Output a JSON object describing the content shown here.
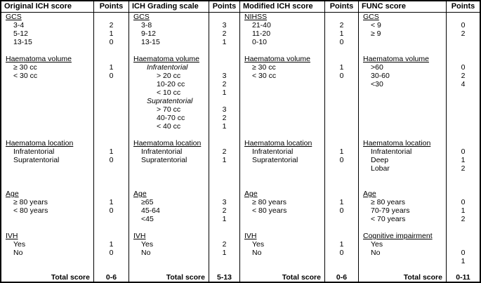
{
  "table": {
    "description": "Comparison of intracerebral haemorrhage outcome scoring systems",
    "text_color": "#000000",
    "border_color": "#000000",
    "background_color": "#ffffff",
    "groups": [
      {
        "title": "Original ICH score",
        "points_label": "Points",
        "total_label": "Total score",
        "total_points": "0-6",
        "rows": [
          {
            "t": "GCS",
            "p": "",
            "s": "section"
          },
          {
            "t": "3-4",
            "p": "2",
            "s": "item"
          },
          {
            "t": "5-12",
            "p": "1",
            "s": "item"
          },
          {
            "t": "13-15",
            "p": "0",
            "s": "item"
          },
          {
            "t": "",
            "p": "",
            "s": "blank"
          },
          {
            "t": "Haematoma volume",
            "p": "",
            "s": "section"
          },
          {
            "t": "≥ 30 cc",
            "p": "1",
            "s": "item"
          },
          {
            "t": "< 30 cc",
            "p": "0",
            "s": "item"
          },
          {
            "t": "",
            "p": "",
            "s": "blank"
          },
          {
            "t": "",
            "p": "",
            "s": "blank"
          },
          {
            "t": "",
            "p": "",
            "s": "blank"
          },
          {
            "t": "",
            "p": "",
            "s": "blank"
          },
          {
            "t": "",
            "p": "",
            "s": "blank"
          },
          {
            "t": "",
            "p": "",
            "s": "blank"
          },
          {
            "t": "",
            "p": "",
            "s": "blank"
          },
          {
            "t": "Haematoma location",
            "p": "",
            "s": "section"
          },
          {
            "t": "Infratentorial",
            "p": "1",
            "s": "item"
          },
          {
            "t": "Supratentorial",
            "p": "0",
            "s": "item"
          },
          {
            "t": "",
            "p": "",
            "s": "blank"
          },
          {
            "t": "",
            "p": "",
            "s": "blank"
          },
          {
            "t": "",
            "p": "",
            "s": "blank"
          },
          {
            "t": "Age",
            "p": "",
            "s": "section"
          },
          {
            "t": "≥ 80 years",
            "p": "1",
            "s": "item"
          },
          {
            "t": "< 80 years",
            "p": "0",
            "s": "item"
          },
          {
            "t": "",
            "p": "",
            "s": "blank"
          },
          {
            "t": "",
            "p": "",
            "s": "blank"
          },
          {
            "t": "IVH",
            "p": "",
            "s": "section"
          },
          {
            "t": "Yes",
            "p": "1",
            "s": "item"
          },
          {
            "t": "No",
            "p": "0",
            "s": "item"
          },
          {
            "t": "",
            "p": "",
            "s": "blank"
          },
          {
            "t": "",
            "p": "",
            "s": "blank"
          }
        ]
      },
      {
        "title": "ICH Grading scale",
        "points_label": "Points",
        "total_label": "Total score",
        "total_points": "5-13",
        "rows": [
          {
            "t": "GCS",
            "p": "",
            "s": "section"
          },
          {
            "t": "3-8",
            "p": "3",
            "s": "item"
          },
          {
            "t": "9-12",
            "p": "2",
            "s": "item"
          },
          {
            "t": "13-15",
            "p": "1",
            "s": "item"
          },
          {
            "t": "",
            "p": "",
            "s": "blank"
          },
          {
            "t": "Haematoma volume",
            "p": "",
            "s": "section"
          },
          {
            "t": "Infratentorial",
            "p": "",
            "s": "itemi"
          },
          {
            "t": "> 20 cc",
            "p": "3",
            "s": "sub"
          },
          {
            "t": "10-20 cc",
            "p": "2",
            "s": "sub"
          },
          {
            "t": "< 10 cc",
            "p": "1",
            "s": "sub"
          },
          {
            "t": "Supratentorial",
            "p": "",
            "s": "itemi"
          },
          {
            "t": "> 70 cc",
            "p": "3",
            "s": "sub"
          },
          {
            "t": "40-70 cc",
            "p": "2",
            "s": "sub"
          },
          {
            "t": "< 40 cc",
            "p": "1",
            "s": "sub"
          },
          {
            "t": "",
            "p": "",
            "s": "blank"
          },
          {
            "t": "Haematoma location",
            "p": "",
            "s": "section"
          },
          {
            "t": "Infratentorial",
            "p": "2",
            "s": "item"
          },
          {
            "t": "Supratentorial",
            "p": "1",
            "s": "item"
          },
          {
            "t": "",
            "p": "",
            "s": "blank"
          },
          {
            "t": "",
            "p": "",
            "s": "blank"
          },
          {
            "t": "",
            "p": "",
            "s": "blank"
          },
          {
            "t": "Age",
            "p": "",
            "s": "section"
          },
          {
            "t": "≥65",
            "p": "3",
            "s": "item"
          },
          {
            "t": "45-64",
            "p": "2",
            "s": "item"
          },
          {
            "t": "<45",
            "p": "1",
            "s": "item"
          },
          {
            "t": "",
            "p": "",
            "s": "blank"
          },
          {
            "t": "IVH",
            "p": "",
            "s": "section"
          },
          {
            "t": "Yes",
            "p": "2",
            "s": "item"
          },
          {
            "t": "No",
            "p": "1",
            "s": "item"
          },
          {
            "t": "",
            "p": "",
            "s": "blank"
          },
          {
            "t": "",
            "p": "",
            "s": "blank"
          }
        ]
      },
      {
        "title": "Modified ICH score",
        "points_label": "Points",
        "total_label": "Total score",
        "total_points": "0-6",
        "rows": [
          {
            "t": "NIHSS",
            "p": "",
            "s": "section"
          },
          {
            "t": "21-40",
            "p": "2",
            "s": "item"
          },
          {
            "t": "11-20",
            "p": "1",
            "s": "item"
          },
          {
            "t": "0-10",
            "p": "0",
            "s": "item"
          },
          {
            "t": "",
            "p": "",
            "s": "blank"
          },
          {
            "t": "Haematoma volume",
            "p": "",
            "s": "section"
          },
          {
            "t": "≥ 30 cc",
            "p": "1",
            "s": "item"
          },
          {
            "t": "< 30 cc",
            "p": "0",
            "s": "item"
          },
          {
            "t": "",
            "p": "",
            "s": "blank"
          },
          {
            "t": "",
            "p": "",
            "s": "blank"
          },
          {
            "t": "",
            "p": "",
            "s": "blank"
          },
          {
            "t": "",
            "p": "",
            "s": "blank"
          },
          {
            "t": "",
            "p": "",
            "s": "blank"
          },
          {
            "t": "",
            "p": "",
            "s": "blank"
          },
          {
            "t": "",
            "p": "",
            "s": "blank"
          },
          {
            "t": "Haematoma location",
            "p": "",
            "s": "section"
          },
          {
            "t": "Infratentorial",
            "p": "1",
            "s": "item"
          },
          {
            "t": "Supratentorial",
            "p": "0",
            "s": "item"
          },
          {
            "t": "",
            "p": "",
            "s": "blank"
          },
          {
            "t": "",
            "p": "",
            "s": "blank"
          },
          {
            "t": "",
            "p": "",
            "s": "blank"
          },
          {
            "t": "Age",
            "p": "",
            "s": "section"
          },
          {
            "t": "≥ 80 years",
            "p": "1",
            "s": "item"
          },
          {
            "t": "< 80 years",
            "p": "0",
            "s": "item"
          },
          {
            "t": "",
            "p": "",
            "s": "blank"
          },
          {
            "t": "",
            "p": "",
            "s": "blank"
          },
          {
            "t": "IVH",
            "p": "",
            "s": "section"
          },
          {
            "t": "Yes",
            "p": "1",
            "s": "item"
          },
          {
            "t": "No",
            "p": "0",
            "s": "item"
          },
          {
            "t": "",
            "p": "",
            "s": "blank"
          },
          {
            "t": "",
            "p": "",
            "s": "blank"
          }
        ]
      },
      {
        "title": "FUNC score",
        "points_label": "Points",
        "total_label": "Total score",
        "total_points": "0-11",
        "rows": [
          {
            "t": "GCS",
            "p": "",
            "s": "section"
          },
          {
            "t": "< 9",
            "p": "0",
            "s": "item"
          },
          {
            "t": "≥ 9",
            "p": "2",
            "s": "item"
          },
          {
            "t": "",
            "p": "",
            "s": "blank"
          },
          {
            "t": "",
            "p": "",
            "s": "blank"
          },
          {
            "t": "Haematoma volume",
            "p": "",
            "s": "section"
          },
          {
            "t": ">60",
            "p": "0",
            "s": "item"
          },
          {
            "t": "30-60",
            "p": "2",
            "s": "item"
          },
          {
            "t": "<30",
            "p": "4",
            "s": "item"
          },
          {
            "t": "",
            "p": "",
            "s": "blank"
          },
          {
            "t": "",
            "p": "",
            "s": "blank"
          },
          {
            "t": "",
            "p": "",
            "s": "blank"
          },
          {
            "t": "",
            "p": "",
            "s": "blank"
          },
          {
            "t": "",
            "p": "",
            "s": "blank"
          },
          {
            "t": "",
            "p": "",
            "s": "blank"
          },
          {
            "t": "Haematoma location",
            "p": "",
            "s": "section"
          },
          {
            "t": "Infratentorial",
            "p": "0",
            "s": "item"
          },
          {
            "t": "Deep",
            "p": "1",
            "s": "item"
          },
          {
            "t": "Lobar",
            "p": "2",
            "s": "item"
          },
          {
            "t": "",
            "p": "",
            "s": "blank"
          },
          {
            "t": "",
            "p": "",
            "s": "blank"
          },
          {
            "t": "Age",
            "p": "",
            "s": "section"
          },
          {
            "t": "≥ 80 years",
            "p": "0",
            "s": "item"
          },
          {
            "t": "70-79 years",
            "p": "1",
            "s": "item"
          },
          {
            "t": "< 70 years",
            "p": "2",
            "s": "item"
          },
          {
            "t": "",
            "p": "",
            "s": "blank"
          },
          {
            "t": "Cognitive impairment",
            "p": "",
            "s": "section"
          },
          {
            "t": "Yes",
            "p": "",
            "s": "item"
          },
          {
            "t": "No",
            "p": "0",
            "s": "item"
          },
          {
            "t": "",
            "p": "1",
            "s": "item"
          },
          {
            "t": "",
            "p": "",
            "s": "blank"
          }
        ]
      }
    ]
  }
}
